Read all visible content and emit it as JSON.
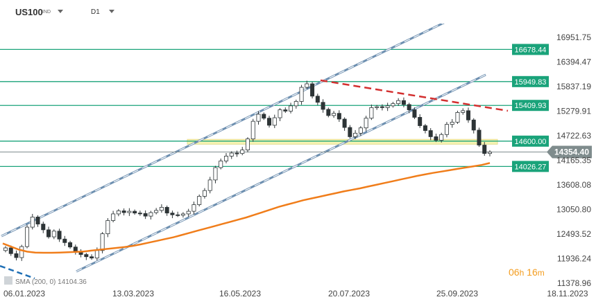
{
  "header": {
    "symbol": "US100",
    "symbol_tag": "IND",
    "timeframe": "D1"
  },
  "timer": {
    "hours": "06",
    "h_unit": "h",
    "minutes": "16",
    "m_unit": "m"
  },
  "indicator_label": "SMA (200, 0)  14104.36",
  "colors": {
    "level_line": "#1aa37a",
    "sma": "#f07d1a",
    "channel": "#6d8fb0",
    "trend": "#d32f2f",
    "zone": "#f5f19a",
    "current_price": "#7f8c8d",
    "candle_up": "#ffffff",
    "candle_down": "#2d3436"
  },
  "chart_data": {
    "type": "line",
    "series": [
      {
        "values": [
          12180,
          12050,
          11960,
          12210,
          12650,
          12880,
          12720,
          12590,
          12430,
          12560,
          12380,
          12300,
          12200,
          12080,
          12030,
          11980,
          11950,
          12120,
          12500,
          12800,
          12950,
          13020,
          12980,
          13010,
          12970,
          12960,
          12900,
          12980,
          13030,
          13100,
          12970,
          12930,
          12920,
          12950,
          13010,
          13160,
          13350,
          13480,
          13720,
          14000,
          14150,
          14260,
          14330,
          14320,
          14400,
          14650,
          15050,
          15210,
          15120,
          14960,
          15130,
          15310,
          15280,
          15400,
          15500,
          15820,
          15900,
          15620,
          15480,
          15320,
          15180,
          15230,
          15100,
          14910,
          14700,
          14780,
          14900,
          15120,
          15360,
          15380,
          15360,
          15400,
          15450,
          15520,
          15430,
          15310,
          15140,
          14950,
          14840,
          14700,
          14620,
          14750,
          14980,
          15030,
          15250,
          15290,
          15080,
          14850,
          14510,
          14320,
          14354
        ]
      },
      {
        "name": "SMA (200, 0)",
        "values": [
          12280,
          12210,
          12140,
          12095,
          12075,
          12070,
          12070,
          12075,
          12080,
          12090,
          12100,
          12120,
          12140,
          12160,
          12180,
          12200,
          12225,
          12260,
          12300,
          12340,
          12380,
          12420,
          12470,
          12520,
          12570,
          12620,
          12670,
          12720,
          12770,
          12820,
          12870,
          12930,
          12990,
          13050,
          13110,
          13160,
          13210,
          13260,
          13300,
          13340,
          13380,
          13420,
          13460,
          13495,
          13530,
          13570,
          13610,
          13650,
          13690,
          13730,
          13770,
          13810,
          13845,
          13880,
          13910,
          13940,
          13970,
          14000,
          14030,
          14060,
          14104
        ]
      }
    ],
    "x_ticks": [
      "06.01.2023",
      "13.03.2023",
      "16.05.2023",
      "20.07.2023",
      "25.09.2023",
      "18.11.2023"
    ],
    "y_ticks": [
      "16951.75",
      "16394.47",
      "15837.19",
      "15279.91",
      "14722.63",
      "14165.35",
      "13608.08",
      "13050.80",
      "12493.52",
      "11936.24",
      "11378.96"
    ],
    "ylim": [
      11378.96,
      16951.75
    ],
    "levels": [
      {
        "value": 16678.44,
        "label": "16678.44"
      },
      {
        "value": 15949.83,
        "label": "15949.83"
      },
      {
        "value": 15409.93,
        "label": "15409.93"
      },
      {
        "value": 14600.0,
        "label": "14600.00"
      },
      {
        "value": 14026.27,
        "label": "14026.27"
      }
    ],
    "current_price": {
      "value": 14354.4,
      "label": "14354.40"
    },
    "zone": [
      14530,
      14640
    ],
    "grid": false
  }
}
